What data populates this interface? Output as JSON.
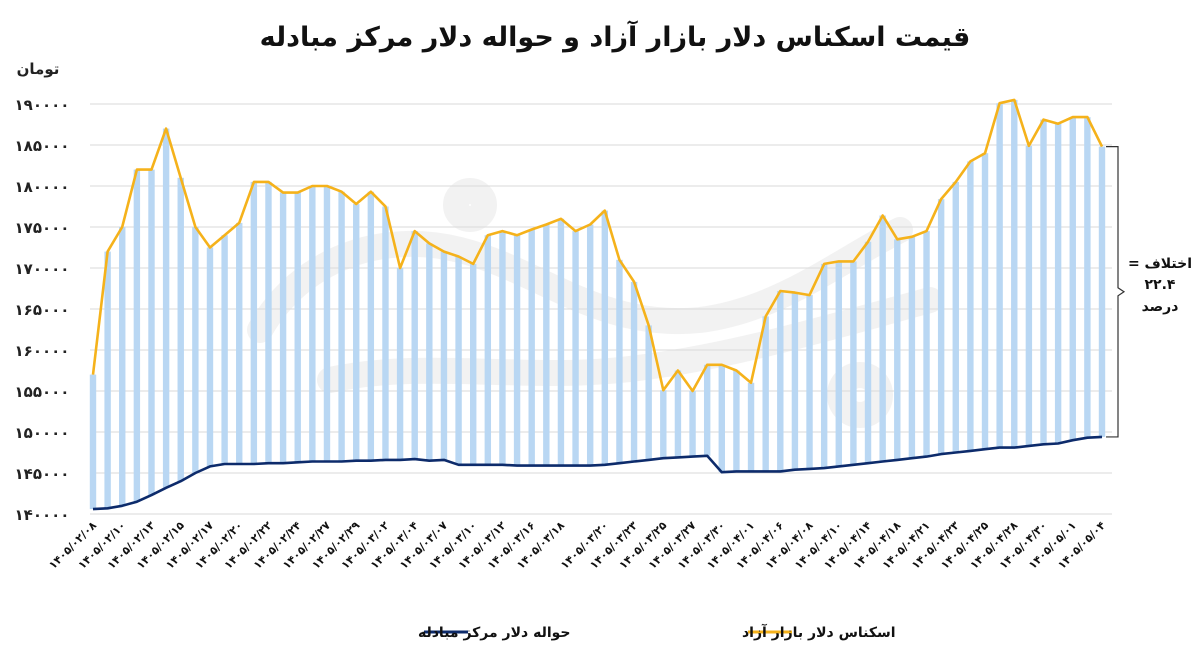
{
  "chart_data": {
    "type": "line",
    "title": "قیمت اسکناس دلار بازار آزاد و حواله دلار مرکز مبادله",
    "unit_label": "تومان",
    "ylim": [
      140000,
      190000
    ],
    "yticks": [
      "۱۹۰۰۰۰",
      "۱۸۵۰۰۰",
      "۱۸۰۰۰۰",
      "۱۷۵۰۰۰",
      "۱۷۰۰۰۰",
      "۱۶۵۰۰۰",
      "۱۶۰۰۰۰",
      "۱۵۵۰۰۰",
      "۱۵۰۰۰۰",
      "۱۴۵۰۰۰",
      "۱۴۰۰۰۰"
    ],
    "ytick_values": [
      190000,
      185000,
      180000,
      175000,
      170000,
      165000,
      160000,
      155000,
      150000,
      145000,
      140000
    ],
    "grid": true,
    "legend_position": "bottom",
    "annotation": [
      "اختلاف =",
      "۲۲.۴",
      "درصد"
    ],
    "x_tick_labels": [
      "۱۴۰۵/۰۲/۰۸",
      "۱۴۰۵/۰۲/۱۰",
      "۱۴۰۵/۰۲/۱۳",
      "۱۴۰۵/۰۲/۱۵",
      "۱۴۰۵/۰۲/۱۷",
      "۱۴۰۵/۰۲/۲۰",
      "۱۴۰۵/۰۲/۲۲",
      "۱۴۰۵/۰۲/۲۴",
      "۱۴۰۵/۰۲/۲۷",
      "۱۴۰۵/۰۲/۲۹",
      "۱۴۰۵/۰۳/۰۲",
      "۱۴۰۵/۰۳/۰۴",
      "۱۴۰۵/۰۳/۰۷",
      "۱۴۰۵/۰۳/۱۰",
      "۱۴۰۵/۰۳/۱۲",
      "۱۴۰۵/۰۳/۱۶",
      "۱۴۰۵/۰۳/۱۸",
      "۱۴۰۵/۰۳/۲۰",
      "۱۴۰۵/۰۳/۲۳",
      "۱۴۰۵/۰۳/۲۵",
      "۱۴۰۵/۰۳/۲۷",
      "۱۴۰۵/۰۳/۳۰",
      "۱۴۰۵/۰۴/۰۱",
      "۱۴۰۵/۰۴/۰۶",
      "۱۴۰۵/۰۴/۰۸",
      "۱۴۰۵/۰۴/۱۰",
      "۱۴۰۵/۰۴/۱۴",
      "۱۴۰۵/۰۴/۱۸",
      "۱۴۰۵/۰۴/۲۱",
      "۱۴۰۵/۰۴/۲۳",
      "۱۴۰۵/۰۴/۲۵",
      "۱۴۰۵/۰۴/۲۸",
      "۱۴۰۵/۰۴/۳۰",
      "۱۴۰۵/۰۵/۰۱",
      "۱۴۰۵/۰۵/۰۴"
    ],
    "series": [
      {
        "name": "اسکناس دلار بازار آزاد",
        "color": "#F5B21B",
        "values": [
          157000,
          172000,
          175000,
          182000,
          182000,
          187000,
          181000,
          175000,
          172500,
          174000,
          175500,
          180500,
          180500,
          179200,
          179200,
          180000,
          180000,
          179300,
          177800,
          179300,
          177500,
          170000,
          174500,
          173000,
          172000,
          171400,
          170500,
          174000,
          174500,
          174000,
          174700,
          175300,
          176000,
          174500,
          175300,
          177000,
          171000,
          168300,
          163000,
          155100,
          157500,
          155000,
          158200,
          158200,
          157500,
          156000,
          164100,
          167200,
          167000,
          166700,
          170500,
          170800,
          170800,
          173200,
          176400,
          173500,
          173800,
          174500,
          178400,
          180500,
          183000,
          184000,
          190100,
          190500,
          184900,
          188100,
          187600,
          188400,
          188400,
          184800
        ]
      },
      {
        "name": "حواله دلار مرکز مبادله",
        "color": "#0D2B6B",
        "values": [
          140600,
          140700,
          141000,
          141500,
          142300,
          143200,
          144000,
          145000,
          145800,
          146100,
          146100,
          146100,
          146200,
          146200,
          146300,
          146400,
          146400,
          146400,
          146500,
          146500,
          146600,
          146600,
          146700,
          146500,
          146600,
          146000,
          146000,
          146000,
          146000,
          145900,
          145900,
          145900,
          145900,
          145900,
          145900,
          146000,
          146200,
          146400,
          146600,
          146800,
          146900,
          147000,
          147100,
          145100,
          145200,
          145200,
          145200,
          145200,
          145400,
          145500,
          145600,
          145800,
          146000,
          146200,
          146400,
          146600,
          146800,
          147000,
          147300,
          147500,
          147700,
          147900,
          148100,
          148100,
          148300,
          148500,
          148600,
          149000,
          149300,
          149400
        ]
      }
    ]
  }
}
